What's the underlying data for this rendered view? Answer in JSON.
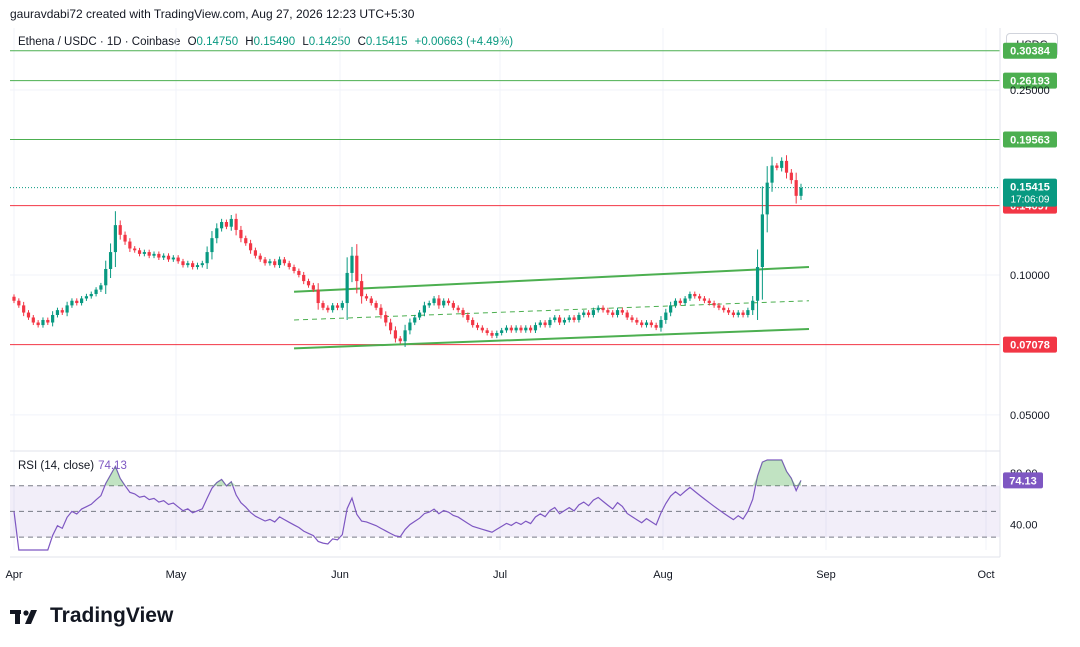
{
  "header": {
    "attribution": "gauravdabi72 created with TradingView.com, Aug 27, 2026 12:23 UTC+5:30"
  },
  "legend": {
    "symbol": "Ethena / USDC · 1D · Coinbase",
    "o_label": "O",
    "o": "0.14750",
    "h_label": "H",
    "h": "0.15490",
    "l_label": "L",
    "l": "0.14250",
    "c_label": "C",
    "c": "0.15415",
    "change": "+0.00663 (+4.49%)"
  },
  "currency_button": "USDC",
  "rsi": {
    "label": "RSI (14, close)",
    "value": "74.13"
  },
  "brand": {
    "name": "TradingView"
  },
  "colors": {
    "up": "#089981",
    "down": "#f23645",
    "green_line": "#4caf50",
    "red_line": "#f23645",
    "rsi": "#7e57c2"
  },
  "chart_data": {
    "type": "candlestick",
    "symbol": "Ethena / USDC",
    "interval": "1D",
    "y_axis": {
      "ticks": [
        "0.25000",
        "0.10000",
        "0.05000"
      ],
      "scale": "log",
      "range": [
        0.042,
        0.34
      ]
    },
    "x_axis": {
      "ticks": [
        "Apr",
        "May",
        "Jun",
        "Jul",
        "Aug",
        "Sep",
        "Oct"
      ]
    },
    "horizontal_levels": [
      {
        "value": 0.30384,
        "label": "0.30384",
        "color": "#4caf50"
      },
      {
        "value": 0.26193,
        "label": "0.26193",
        "color": "#4caf50"
      },
      {
        "value": 0.19563,
        "label": "0.19563",
        "color": "#4caf50"
      },
      {
        "value": 0.14097,
        "label": "0.14097",
        "color": "#f23645"
      },
      {
        "value": 0.07078,
        "label": "0.07078",
        "color": "#f23645"
      }
    ],
    "last_price": {
      "value": 0.15415,
      "label": "0.15415",
      "countdown": "17:06:09"
    },
    "channel": {
      "start": "Jun 2",
      "end": "Aug 27",
      "upper": [
        0.092,
        0.104
      ],
      "lower": [
        0.0695,
        0.0765
      ],
      "mid": [
        0.08,
        0.088
      ]
    },
    "candles_close": [
      0.088,
      0.086,
      0.083,
      0.081,
      0.079,
      0.078,
      0.08,
      0.079,
      0.082,
      0.084,
      0.083,
      0.086,
      0.088,
      0.087,
      0.089,
      0.09,
      0.091,
      0.093,
      0.095,
      0.103,
      0.112,
      0.128,
      0.122,
      0.118,
      0.114,
      0.113,
      0.111,
      0.112,
      0.11,
      0.111,
      0.109,
      0.11,
      0.108,
      0.109,
      0.107,
      0.105,
      0.106,
      0.104,
      0.105,
      0.106,
      0.112,
      0.12,
      0.126,
      0.13,
      0.127,
      0.132,
      0.125,
      0.12,
      0.117,
      0.113,
      0.11,
      0.108,
      0.106,
      0.107,
      0.105,
      0.108,
      0.106,
      0.104,
      0.102,
      0.1,
      0.097,
      0.095,
      0.093,
      0.087,
      0.085,
      0.084,
      0.086,
      0.085,
      0.087,
      0.101,
      0.11,
      0.097,
      0.09,
      0.089,
      0.087,
      0.085,
      0.082,
      0.079,
      0.076,
      0.073,
      0.072,
      0.076,
      0.079,
      0.081,
      0.083,
      0.086,
      0.087,
      0.089,
      0.086,
      0.088,
      0.087,
      0.085,
      0.084,
      0.082,
      0.08,
      0.078,
      0.077,
      0.076,
      0.075,
      0.074,
      0.075,
      0.076,
      0.077,
      0.076,
      0.077,
      0.076,
      0.077,
      0.076,
      0.078,
      0.079,
      0.078,
      0.08,
      0.081,
      0.079,
      0.08,
      0.081,
      0.08,
      0.082,
      0.083,
      0.082,
      0.084,
      0.085,
      0.084,
      0.083,
      0.082,
      0.084,
      0.083,
      0.081,
      0.08,
      0.079,
      0.078,
      0.079,
      0.078,
      0.077,
      0.08,
      0.083,
      0.086,
      0.088,
      0.087,
      0.089,
      0.091,
      0.09,
      0.089,
      0.088,
      0.087,
      0.086,
      0.085,
      0.084,
      0.083,
      0.082,
      0.083,
      0.082,
      0.084,
      0.088,
      0.104,
      0.135,
      0.158,
      0.172,
      0.17,
      0.176,
      0.166,
      0.16,
      0.148,
      0.154
    ],
    "rsi": {
      "name": "RSI (14, close)",
      "levels": [
        70,
        50,
        30
      ],
      "axis_ticks": [
        "80.00",
        "40.00"
      ],
      "current": 74.13
    }
  }
}
